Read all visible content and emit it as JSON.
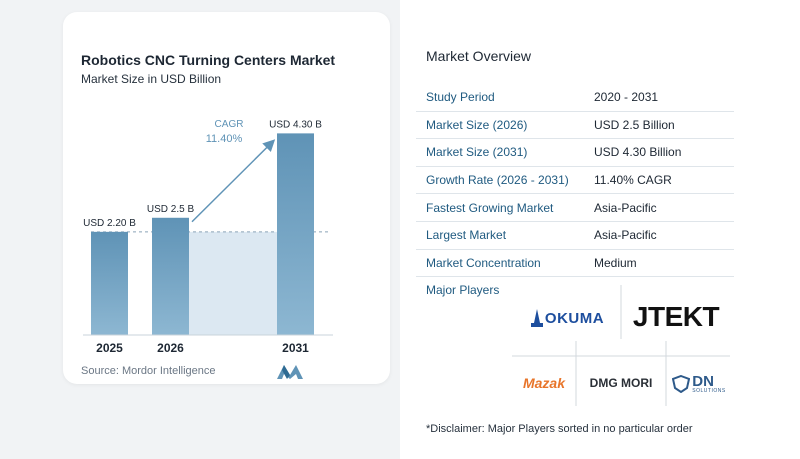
{
  "chart_data": {
    "type": "bar",
    "title": "Robotics CNC Turning Centers Market",
    "subtitle": "Market Size in USD Billion",
    "categories": [
      "2025",
      "2026",
      "2031"
    ],
    "values": [
      2.2,
      2.5,
      4.3
    ],
    "data_labels": [
      "USD 2.20 B",
      "USD 2.5 B",
      "USD 4.30 B"
    ],
    "cagr_label": "CAGR",
    "cagr_value": "11.40%",
    "ylim": [
      0,
      4.5
    ],
    "grid": false,
    "colors": {
      "bar": "#5f93b6",
      "bar_light": "#8db7d2",
      "band": "#dce8f2",
      "arrow": "#5f93b6",
      "cagr_text": "#5f93b6"
    }
  },
  "source": "Source: Mordor Intelligence",
  "overview": {
    "title": "Market Overview",
    "rows": [
      {
        "key": "Study Period",
        "value": "2020 - 2031"
      },
      {
        "key": "Market Size (2026)",
        "value": "USD 2.5 Billion"
      },
      {
        "key": "Market Size (2031)",
        "value": "USD 4.30 Billion"
      },
      {
        "key": "Growth Rate (2026 - 2031)",
        "value": "11.40% CAGR"
      },
      {
        "key": "Fastest Growing Market",
        "value": "Asia-Pacific"
      },
      {
        "key": "Largest Market",
        "value": "Asia-Pacific"
      },
      {
        "key": "Market Concentration",
        "value": "Medium"
      }
    ]
  },
  "players": {
    "title": "Major Players",
    "logos": [
      "OKUMA",
      "JTEKT",
      "Mazak",
      "DMG MORI",
      "DN",
      "SOLUTIONS"
    ]
  },
  "disclaimer": "*Disclaimer: Major Players sorted in no particular order"
}
